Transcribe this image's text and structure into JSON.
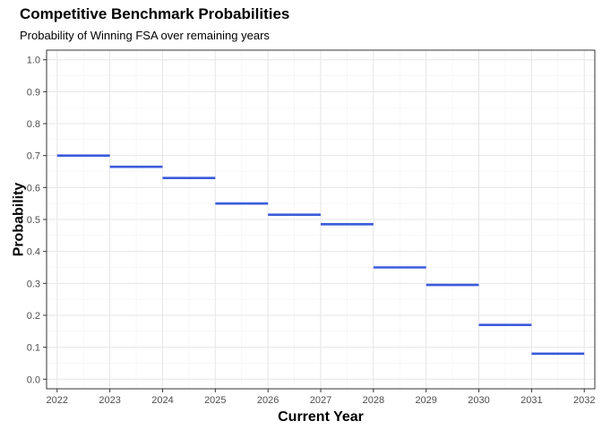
{
  "title": "Competitive Benchmark Probabilities",
  "subtitle": "Probability of Winning FSA over remaining years",
  "chart_data": {
    "type": "step",
    "title": "Competitive Benchmark Probabilities",
    "subtitle": "Probability of Winning FSA over remaining years",
    "xlabel": "Current Year",
    "ylabel": "Probability",
    "xlim": [
      2021.8,
      2032.2
    ],
    "ylim": [
      -0.03,
      1.03
    ],
    "x_ticks": [
      2022,
      2023,
      2024,
      2025,
      2026,
      2027,
      2028,
      2029,
      2030,
      2031,
      2032
    ],
    "y_ticks": [
      0.0,
      0.1,
      0.2,
      0.3,
      0.4,
      0.5,
      0.6,
      0.7,
      0.8,
      0.9,
      1.0
    ],
    "y_tick_labels": [
      "0.0",
      "0.1",
      "0.2",
      "0.3",
      "0.4",
      "0.5",
      "0.6",
      "0.7",
      "0.8",
      "0.9",
      "1.0"
    ],
    "grid": true,
    "line_color": "#3b5bdb",
    "segments": [
      {
        "x_start": 2022,
        "x_end": 2023,
        "y": 0.7
      },
      {
        "x_start": 2023,
        "x_end": 2024,
        "y": 0.665
      },
      {
        "x_start": 2024,
        "x_end": 2025,
        "y": 0.63
      },
      {
        "x_start": 2025,
        "x_end": 2026,
        "y": 0.55
      },
      {
        "x_start": 2026,
        "x_end": 2027,
        "y": 0.515
      },
      {
        "x_start": 2027,
        "x_end": 2028,
        "y": 0.485
      },
      {
        "x_start": 2028,
        "x_end": 2029,
        "y": 0.35
      },
      {
        "x_start": 2029,
        "x_end": 2030,
        "y": 0.295
      },
      {
        "x_start": 2030,
        "x_end": 2031,
        "y": 0.17
      },
      {
        "x_start": 2031,
        "x_end": 2032,
        "y": 0.08
      }
    ]
  }
}
